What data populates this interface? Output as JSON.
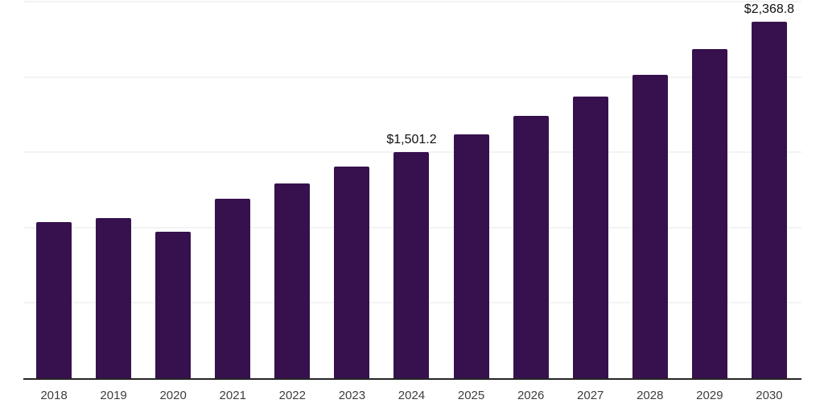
{
  "chart_data": {
    "type": "bar",
    "title": "",
    "xlabel": "",
    "ylabel": "",
    "categories": [
      "2018",
      "2019",
      "2020",
      "2021",
      "2022",
      "2023",
      "2024",
      "2025",
      "2026",
      "2027",
      "2028",
      "2029",
      "2030"
    ],
    "values": [
      1035,
      1065,
      973,
      1193,
      1295,
      1406,
      1501.2,
      1618,
      1740,
      1870,
      2012,
      2185,
      2368.8
    ],
    "data_labels": [
      "",
      "",
      "",
      "",
      "",
      "",
      "$1,501.2",
      "",
      "",
      "",
      "",
      "",
      "$2,368.8"
    ],
    "ylim": [
      0,
      2500
    ],
    "gridline_values": [
      500,
      1000,
      1500,
      2000,
      2500
    ],
    "grid": "horizontal-only",
    "legend_position": "none",
    "y_axis_tick_labels_visible": false
  },
  "colors": {
    "background": "#ffffff",
    "bar": "#36114d",
    "axis_line": "#262626",
    "gridline": "#f3f3f3",
    "tick_label": "#3d3d3d",
    "data_label": "#0f0f0f"
  }
}
